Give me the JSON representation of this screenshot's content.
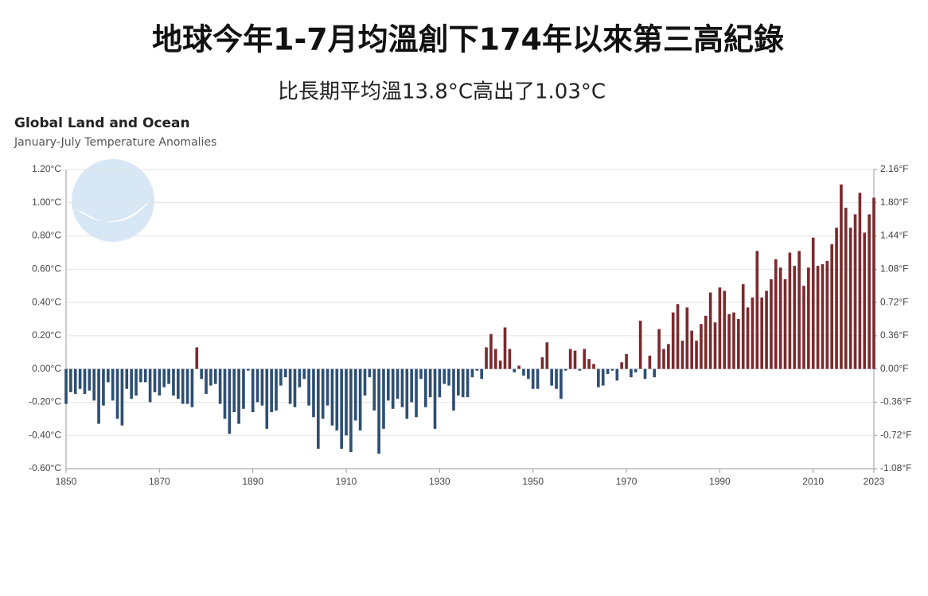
{
  "chart_data": {
    "type": "bar",
    "title": "地球今年1-7月均溫創下174年以來第三高紀錄",
    "subtitle": "比長期平均溫13.8°C高出了1.03°C",
    "chart_title": "Global Land and Ocean",
    "chart_subtitle": "January-July Temperature Anomalies",
    "x": [
      1850,
      1851,
      1852,
      1853,
      1854,
      1855,
      1856,
      1857,
      1858,
      1859,
      1860,
      1861,
      1862,
      1863,
      1864,
      1865,
      1866,
      1867,
      1868,
      1869,
      1870,
      1871,
      1872,
      1873,
      1874,
      1875,
      1876,
      1877,
      1878,
      1879,
      1880,
      1881,
      1882,
      1883,
      1884,
      1885,
      1886,
      1887,
      1888,
      1889,
      1890,
      1891,
      1892,
      1893,
      1894,
      1895,
      1896,
      1897,
      1898,
      1899,
      1900,
      1901,
      1902,
      1903,
      1904,
      1905,
      1906,
      1907,
      1908,
      1909,
      1910,
      1911,
      1912,
      1913,
      1914,
      1915,
      1916,
      1917,
      1918,
      1919,
      1920,
      1921,
      1922,
      1923,
      1924,
      1925,
      1926,
      1927,
      1928,
      1929,
      1930,
      1931,
      1932,
      1933,
      1934,
      1935,
      1936,
      1937,
      1938,
      1939,
      1940,
      1941,
      1942,
      1943,
      1944,
      1945,
      1946,
      1947,
      1948,
      1949,
      1950,
      1951,
      1952,
      1953,
      1954,
      1955,
      1956,
      1957,
      1958,
      1959,
      1960,
      1961,
      1962,
      1963,
      1964,
      1965,
      1966,
      1967,
      1968,
      1969,
      1970,
      1971,
      1972,
      1973,
      1974,
      1975,
      1976,
      1977,
      1978,
      1979,
      1980,
      1981,
      1982,
      1983,
      1984,
      1985,
      1986,
      1987,
      1988,
      1989,
      1990,
      1991,
      1992,
      1993,
      1994,
      1995,
      1996,
      1997,
      1998,
      1999,
      2000,
      2001,
      2002,
      2003,
      2004,
      2005,
      2006,
      2007,
      2008,
      2009,
      2010,
      2011,
      2012,
      2013,
      2014,
      2015,
      2016,
      2017,
      2018,
      2019,
      2020,
      2021,
      2022,
      2023
    ],
    "values": [
      -0.21,
      -0.14,
      -0.15,
      -0.12,
      -0.15,
      -0.13,
      -0.19,
      -0.33,
      -0.22,
      -0.08,
      -0.19,
      -0.3,
      -0.34,
      -0.12,
      -0.18,
      -0.16,
      -0.08,
      -0.08,
      -0.2,
      -0.14,
      -0.16,
      -0.11,
      -0.09,
      -0.16,
      -0.18,
      -0.21,
      -0.21,
      -0.23,
      0.13,
      -0.06,
      -0.15,
      -0.1,
      -0.09,
      -0.21,
      -0.3,
      -0.39,
      -0.26,
      -0.33,
      -0.24,
      -0.01,
      -0.26,
      -0.2,
      -0.22,
      -0.36,
      -0.26,
      -0.25,
      -0.1,
      -0.05,
      -0.21,
      -0.23,
      -0.11,
      -0.06,
      -0.22,
      -0.29,
      -0.48,
      -0.3,
      -0.22,
      -0.34,
      -0.37,
      -0.48,
      -0.4,
      -0.5,
      -0.31,
      -0.37,
      -0.16,
      -0.05,
      -0.25,
      -0.51,
      -0.36,
      -0.19,
      -0.24,
      -0.18,
      -0.23,
      -0.3,
      -0.2,
      -0.29,
      -0.06,
      -0.23,
      -0.17,
      -0.36,
      -0.17,
      -0.09,
      -0.1,
      -0.25,
      -0.16,
      -0.17,
      -0.17,
      -0.05,
      -0.01,
      -0.06,
      0.13,
      0.21,
      0.12,
      0.05,
      0.25,
      0.12,
      -0.02,
      0.02,
      -0.04,
      -0.06,
      -0.12,
      -0.12,
      0.07,
      0.16,
      -0.1,
      -0.12,
      -0.18,
      -0.01,
      0.12,
      0.11,
      -0.01,
      0.12,
      0.06,
      0.03,
      -0.11,
      -0.1,
      -0.03,
      -0.01,
      -0.07,
      0.04,
      0.09,
      -0.05,
      -0.02,
      0.29,
      -0.06,
      0.08,
      -0.05,
      0.24,
      0.12,
      0.15,
      0.34,
      0.39,
      0.17,
      0.37,
      0.23,
      0.17,
      0.27,
      0.32,
      0.46,
      0.28,
      0.49,
      0.47,
      0.33,
      0.34,
      0.3,
      0.51,
      0.37,
      0.43,
      0.71,
      0.43,
      0.47,
      0.54,
      0.66,
      0.61,
      0.54,
      0.7,
      0.62,
      0.71,
      0.5,
      0.61,
      0.79,
      0.62,
      0.63,
      0.65,
      0.75,
      0.85,
      1.11,
      0.97,
      0.85,
      0.93,
      1.06,
      0.82,
      0.93,
      1.03
    ],
    "positive_color": "#7b2a2e",
    "negative_color": "#2e4f74",
    "xlim": [
      1850,
      2023
    ],
    "xticks": [
      1850,
      1870,
      1890,
      1910,
      1930,
      1950,
      1970,
      1990,
      2010,
      2023
    ],
    "ylim": [
      -0.6,
      1.2
    ],
    "yticks": [
      {
        "value": 1.2,
        "label": "1.20°C"
      },
      {
        "value": 1.0,
        "label": "1.00°C"
      },
      {
        "value": 0.8,
        "label": "0.80°C"
      },
      {
        "value": 0.6,
        "label": "0.60°C"
      },
      {
        "value": 0.4,
        "label": "0.40°C"
      },
      {
        "value": 0.2,
        "label": "0.20°C"
      },
      {
        "value": 0,
        "label": "0.00°C"
      },
      {
        "value": -0.2,
        "label": "-0.20°C"
      },
      {
        "value": -0.4,
        "label": "-0.40°C"
      },
      {
        "value": -0.6,
        "label": "-0.60°C"
      }
    ],
    "y2lim": [
      -1.08,
      2.16
    ],
    "y2ticks": [
      {
        "value": 2.16,
        "label": "2.16°F"
      },
      {
        "value": 1.8,
        "label": "1.80°F"
      },
      {
        "value": 1.44,
        "label": "1.44°F"
      },
      {
        "value": 1.08,
        "label": "1.08°F"
      },
      {
        "value": 0.72,
        "label": "0.72°F"
      },
      {
        "value": 0.36,
        "label": "0.36°F"
      },
      {
        "value": 0,
        "label": "0.00°F"
      },
      {
        "value": -0.36,
        "label": "-0.36°F"
      },
      {
        "value": -0.72,
        "label": "-0.72°F"
      },
      {
        "value": -1.08,
        "label": "-1.08°F"
      }
    ],
    "grid": true
  }
}
